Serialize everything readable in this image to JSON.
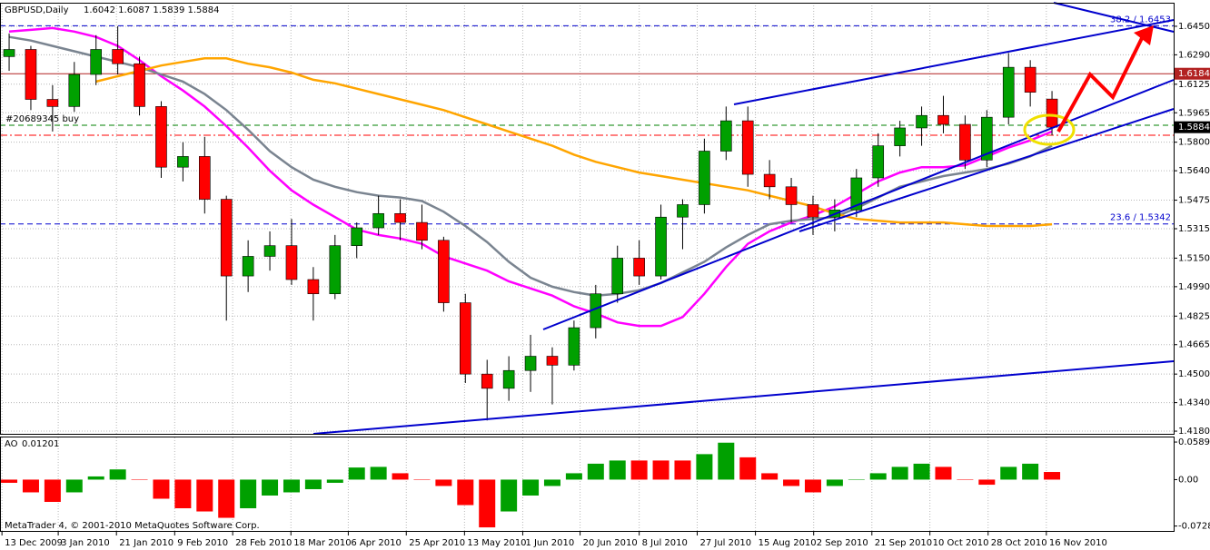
{
  "chart_data": [
    {
      "type": "candlestick",
      "title": "GBPUSD,Daily",
      "quote": "1.6042 1.6087 1.5839 1.5884",
      "x": [
        0,
        1,
        2,
        3,
        4,
        5,
        6,
        7,
        8,
        9,
        10,
        11,
        12,
        13,
        14,
        15,
        16,
        17,
        18,
        19,
        20,
        21,
        22,
        23,
        24,
        25,
        26,
        27,
        28,
        29,
        30,
        31,
        32,
        33,
        34,
        35,
        36,
        37,
        38,
        39,
        40,
        41,
        42,
        43,
        44,
        45,
        46,
        47,
        48
      ],
      "open": [
        1.628,
        1.632,
        1.604,
        1.6,
        1.618,
        1.632,
        1.624,
        1.6,
        1.566,
        1.572,
        1.548,
        1.505,
        1.516,
        1.522,
        1.503,
        1.495,
        1.522,
        1.532,
        1.54,
        1.535,
        1.525,
        1.49,
        1.45,
        1.442,
        1.452,
        1.46,
        1.455,
        1.476,
        1.495,
        1.515,
        1.505,
        1.538,
        1.545,
        1.575,
        1.592,
        1.562,
        1.555,
        1.545,
        1.538,
        1.542,
        1.56,
        1.578,
        1.588,
        1.595,
        1.59,
        1.57,
        1.594,
        1.622,
        1.6042
      ],
      "high": [
        1.641,
        1.634,
        1.612,
        1.625,
        1.64,
        1.645,
        1.628,
        1.603,
        1.58,
        1.583,
        1.55,
        1.525,
        1.53,
        1.537,
        1.51,
        1.528,
        1.535,
        1.55,
        1.548,
        1.545,
        1.527,
        1.495,
        1.458,
        1.46,
        1.472,
        1.465,
        1.48,
        1.5,
        1.522,
        1.525,
        1.545,
        1.548,
        1.582,
        1.6,
        1.6,
        1.57,
        1.56,
        1.55,
        1.548,
        1.565,
        1.585,
        1.592,
        1.6,
        1.606,
        1.595,
        1.598,
        1.63,
        1.626,
        1.6087
      ],
      "low": [
        1.62,
        1.598,
        1.586,
        1.597,
        1.612,
        1.618,
        1.595,
        1.56,
        1.558,
        1.54,
        1.48,
        1.496,
        1.508,
        1.5,
        1.48,
        1.492,
        1.515,
        1.528,
        1.525,
        1.52,
        1.485,
        1.445,
        1.424,
        1.435,
        1.44,
        1.433,
        1.452,
        1.47,
        1.49,
        1.5,
        1.503,
        1.52,
        1.54,
        1.57,
        1.555,
        1.548,
        1.535,
        1.528,
        1.53,
        1.538,
        1.555,
        1.572,
        1.578,
        1.585,
        1.565,
        1.566,
        1.59,
        1.6,
        1.5839
      ],
      "close": [
        1.632,
        1.604,
        1.6,
        1.618,
        1.632,
        1.624,
        1.6,
        1.566,
        1.572,
        1.548,
        1.505,
        1.516,
        1.522,
        1.503,
        1.495,
        1.522,
        1.532,
        1.54,
        1.535,
        1.525,
        1.49,
        1.45,
        1.442,
        1.452,
        1.46,
        1.455,
        1.476,
        1.495,
        1.515,
        1.505,
        1.538,
        1.545,
        1.575,
        1.592,
        1.562,
        1.555,
        1.545,
        1.538,
        1.542,
        1.56,
        1.578,
        1.588,
        1.595,
        1.59,
        1.57,
        1.594,
        1.622,
        1.608,
        1.5884
      ],
      "up_color": "#00a000",
      "down_color": "#ff0000",
      "wick_color": "#000000",
      "series": [
        {
          "color": "#ff00ff",
          "values": [
            1.642,
            1.643,
            1.644,
            1.642,
            1.639,
            1.634,
            1.626,
            1.617,
            1.609,
            1.6,
            1.589,
            1.577,
            1.564,
            1.553,
            1.545,
            1.538,
            1.531,
            1.528,
            1.526,
            1.523,
            1.516,
            1.512,
            1.508,
            1.502,
            1.498,
            1.494,
            1.488,
            1.484,
            1.479,
            1.477,
            1.477,
            1.482,
            1.495,
            1.51,
            1.523,
            1.53,
            1.535,
            1.539,
            1.544,
            1.551,
            1.558,
            1.563,
            1.566,
            1.566,
            1.567,
            1.572,
            1.577,
            1.581,
            1.586
          ]
        },
        {
          "color": "#7a8490",
          "values": [
            1.639,
            1.637,
            1.634,
            1.631,
            1.628,
            1.625,
            1.622,
            1.618,
            1.614,
            1.607,
            1.598,
            1.587,
            1.575,
            1.566,
            1.559,
            1.555,
            1.552,
            1.55,
            1.549,
            1.547,
            1.541,
            1.533,
            1.524,
            1.513,
            1.504,
            1.499,
            1.496,
            1.494,
            1.495,
            1.497,
            1.501,
            1.507,
            1.513,
            1.521,
            1.528,
            1.534,
            1.536,
            1.537,
            1.538,
            1.543,
            1.549,
            1.555,
            1.558,
            1.561,
            1.563,
            1.565,
            1.568,
            1.572,
            1.578
          ]
        },
        {
          "color": "#ffa500",
          "values": [
            null,
            null,
            null,
            null,
            1.614,
            1.617,
            1.62,
            1.623,
            1.625,
            1.627,
            1.627,
            1.624,
            1.622,
            1.619,
            1.615,
            1.613,
            1.61,
            1.607,
            1.604,
            1.601,
            1.598,
            1.594,
            1.59,
            1.586,
            1.582,
            1.578,
            1.573,
            1.569,
            1.566,
            1.563,
            1.561,
            1.559,
            1.557,
            1.555,
            1.553,
            1.55,
            1.547,
            1.544,
            1.54,
            1.537,
            1.536,
            1.535,
            1.535,
            1.535,
            1.534,
            1.533,
            1.533,
            1.533,
            1.534
          ]
        }
      ],
      "xlim": [
        -0.42,
        53.6
      ],
      "xticks": [
        {
          "value": -0.33,
          "label": "13 Dec 2009"
        },
        {
          "value": 2.26,
          "label": "3 Jan 2010"
        },
        {
          "value": 4.94,
          "label": "21 Jan 2010"
        },
        {
          "value": 7.62,
          "label": "9 Feb 2010"
        },
        {
          "value": 10.29,
          "label": "28 Feb 2010"
        },
        {
          "value": 12.97,
          "label": "18 Mar 2010"
        },
        {
          "value": 15.61,
          "label": "6 Apr 2010"
        },
        {
          "value": 18.28,
          "label": "25 Apr 2010"
        },
        {
          "value": 20.96,
          "label": "13 May 2010"
        },
        {
          "value": 23.64,
          "label": "1 Jun 2010"
        },
        {
          "value": 26.28,
          "label": "20 Jun 2010"
        },
        {
          "value": 29.0,
          "label": "8 Jul 2010"
        },
        {
          "value": 31.67,
          "label": "27 Jul 2010"
        },
        {
          "value": 34.35,
          "label": "15 Aug 2010"
        },
        {
          "value": 37.03,
          "label": "2 Sep 2010"
        },
        {
          "value": 39.71,
          "label": "21 Sep 2010"
        },
        {
          "value": 42.38,
          "label": "10 Oct 2010"
        },
        {
          "value": 45.06,
          "label": "28 Oct 2010"
        },
        {
          "value": 47.74,
          "label": "16 Nov 2010"
        }
      ],
      "ylim": [
        1.4165,
        1.6582
      ],
      "yticks": [
        {
          "value": 1.645,
          "label": "1.6450"
        },
        {
          "value": 1.629,
          "label": "1.6290"
        },
        1.6125,
        1.5965,
        {
          "value": 1.58,
          "label": "1.5800"
        },
        {
          "value": 1.564,
          "label": "1.5640"
        },
        1.5475,
        1.5315,
        {
          "value": 1.515,
          "label": "1.5150"
        },
        {
          "value": 1.499,
          "label": "1.4990"
        },
        1.4825,
        1.4665,
        {
          "value": 1.45,
          "label": "1.4500"
        },
        {
          "value": 1.434,
          "label": "1.4340"
        },
        {
          "value": 1.418,
          "label": "1.4180"
        }
      ],
      "levels": [
        {
          "value": 1.6184,
          "color": "#b22222",
          "style": "solid",
          "label_pos": "axis"
        },
        {
          "value": 1.5895,
          "color": "#008000",
          "style": "dashed",
          "label": "#20689345 buy",
          "label_pos": "left"
        },
        {
          "value": 1.5839,
          "color": "#ff0000",
          "style": "dashdot"
        },
        {
          "value": 1.5342,
          "color": "#0000cd",
          "style": "dashed",
          "label": "23.6 / 1.5342",
          "label_pos": "right"
        },
        {
          "value": 1.6453,
          "color": "#0000cd",
          "style": "dashed",
          "label": "38.2 / 1.6453",
          "label_pos": "right"
        }
      ],
      "grid": true
    },
    {
      "type": "bar",
      "title": "AO",
      "x": [
        0,
        1,
        2,
        3,
        4,
        5,
        6,
        7,
        8,
        9,
        10,
        11,
        12,
        13,
        14,
        15,
        16,
        17,
        18,
        19,
        20,
        21,
        22,
        23,
        24,
        25,
        26,
        27,
        28,
        29,
        30,
        31,
        32,
        33,
        34,
        35,
        36,
        37,
        38,
        39,
        40,
        41,
        42,
        43,
        44,
        45,
        46,
        47,
        48
      ],
      "values": [
        -0.005,
        -0.02,
        -0.035,
        -0.02,
        0.005,
        0.016,
        0.0,
        -0.03,
        -0.045,
        -0.05,
        -0.06,
        -0.045,
        -0.025,
        -0.02,
        -0.015,
        -0.005,
        0.019,
        0.02,
        0.01,
        0.0,
        -0.01,
        -0.04,
        -0.075,
        -0.05,
        -0.025,
        -0.01,
        0.01,
        0.025,
        0.03,
        0.03,
        0.03,
        0.03,
        0.04,
        0.058,
        0.035,
        0.01,
        -0.01,
        -0.02,
        -0.01,
        0.0,
        0.01,
        0.02,
        0.025,
        0.02,
        0.0,
        -0.008,
        0.02,
        0.025,
        0.01201
      ],
      "up_color": "#00a000",
      "down_color": "#ff0000",
      "ylim": [
        -0.0806,
        0.0662
      ],
      "yticks": [
        0.05899,
        {
          "value": 0,
          "label": "0.00"
        },
        -0.07289
      ],
      "footer": "MetaTrader 4, © 2001-2010 MetaQuotes Software Corp."
    }
  ]
}
